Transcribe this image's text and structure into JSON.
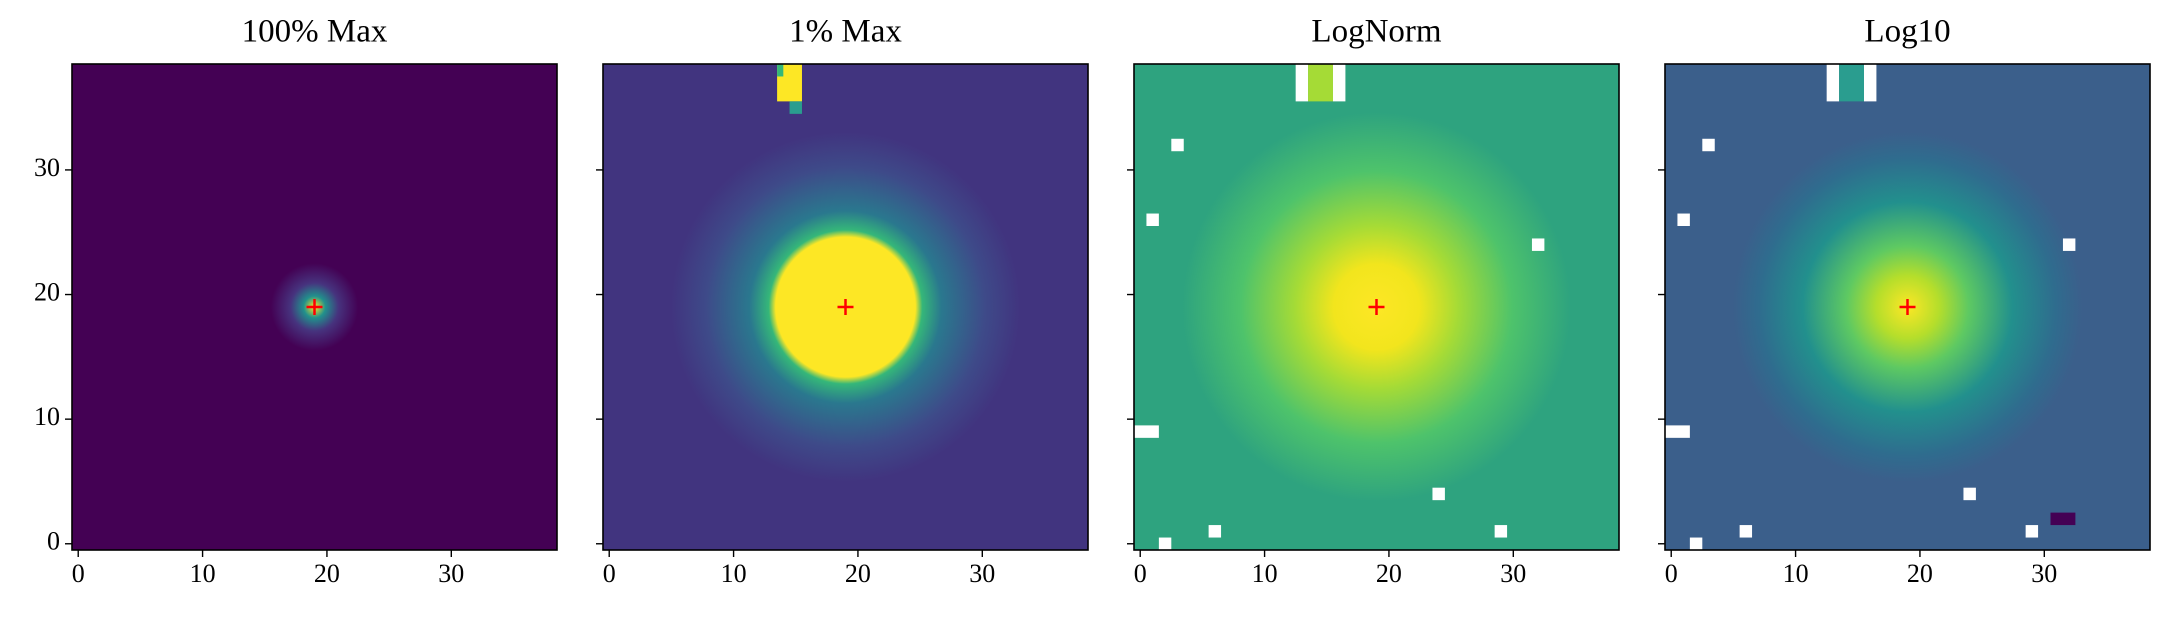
{
  "chart_data": [
    {
      "type": "heatmap",
      "title": "100% Max",
      "xlim": [
        -0.5,
        38.5
      ],
      "ylim": [
        -0.5,
        38.5
      ],
      "xticks": [
        0,
        10,
        20,
        30
      ],
      "yticks": [
        0,
        10,
        20,
        30
      ],
      "yticklabels": true,
      "marker": {
        "x": 19,
        "y": 19,
        "color": "#ff0000"
      }
    },
    {
      "type": "heatmap",
      "title": "1% Max",
      "xlim": [
        -0.5,
        38.5
      ],
      "ylim": [
        -0.5,
        38.5
      ],
      "xticks": [
        0,
        10,
        20,
        30
      ],
      "yticks": [
        0,
        10,
        20,
        30
      ],
      "yticklabels": false,
      "marker": {
        "x": 19,
        "y": 19,
        "color": "#ff0000"
      }
    },
    {
      "type": "heatmap",
      "title": "LogNorm",
      "xlim": [
        -0.5,
        38.5
      ],
      "ylim": [
        -0.5,
        38.5
      ],
      "xticks": [
        0,
        10,
        20,
        30
      ],
      "yticks": [
        0,
        10,
        20,
        30
      ],
      "yticklabels": false,
      "marker": {
        "x": 19,
        "y": 19,
        "color": "#ff0000"
      }
    },
    {
      "type": "heatmap",
      "title": "Log10",
      "xlim": [
        -0.5,
        38.5
      ],
      "ylim": [
        -0.5,
        38.5
      ],
      "xticks": [
        0,
        10,
        20,
        30
      ],
      "yticks": [
        0,
        10,
        20,
        30
      ],
      "yticklabels": false,
      "marker": {
        "x": 19,
        "y": 19,
        "color": "#ff0000"
      }
    }
  ]
}
